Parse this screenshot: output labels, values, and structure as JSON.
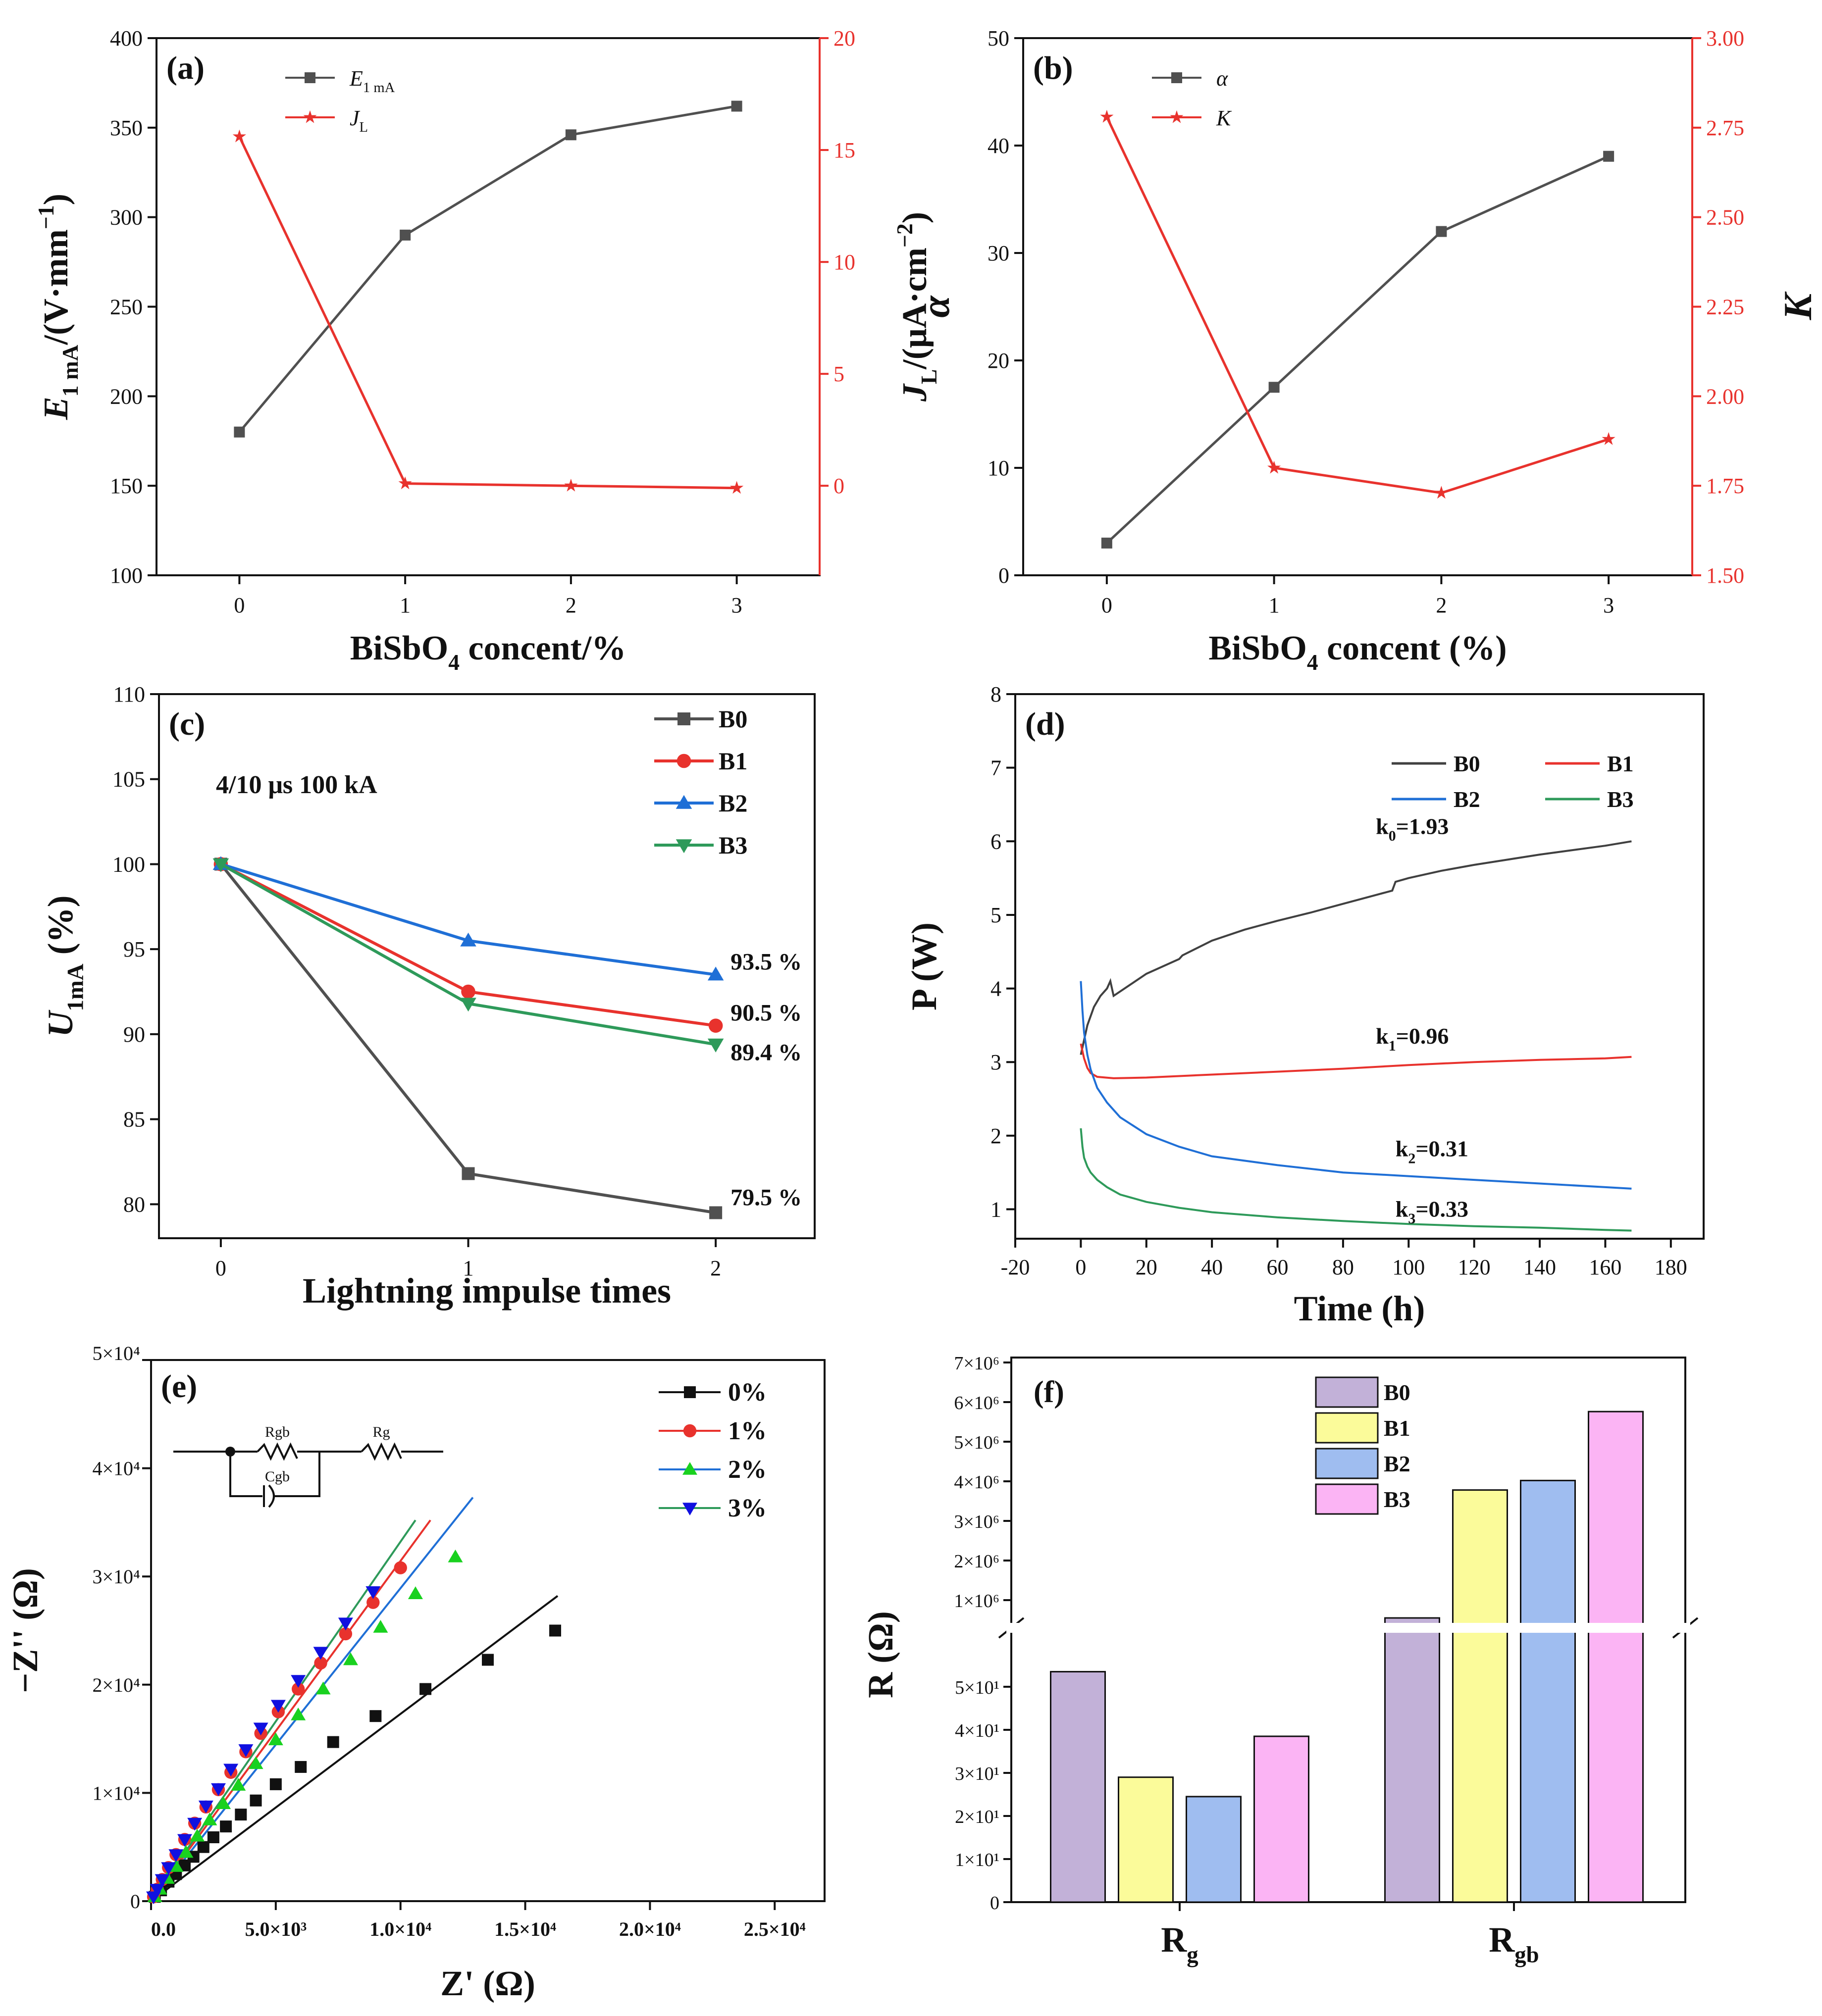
{
  "chart_data": [
    {
      "panel": "a",
      "tag": "(a)",
      "type": "line",
      "x": [
        0,
        1,
        2,
        3
      ],
      "xticks": [
        "0",
        "1",
        "2",
        "3"
      ],
      "xlim": [
        -0.5,
        3.5
      ],
      "xlabel": {
        "pre": "BiSbO",
        "sub": "4",
        "post": " concent/%"
      },
      "ylabel": {
        "pre": "E",
        "sub": "1 mA",
        "post": "/(V·mm",
        "sup": "−1",
        "end": ")"
      },
      "ylim": [
        100,
        400
      ],
      "yticks": [
        "100",
        "150",
        "200",
        "250",
        "300",
        "350",
        "400"
      ],
      "y2label": {
        "pre": "J",
        "sub": "L",
        "post": "/(μA·cm",
        "sup": "−2",
        "end": ")"
      },
      "y2lim": [
        -4,
        20
      ],
      "y2ticks": [
        "0",
        "5",
        "10",
        "15",
        "20"
      ],
      "series": [
        {
          "name": "E",
          "sub": "1 mA",
          "axis": "left",
          "color": "#505050",
          "marker": "square",
          "values": [
            180,
            290,
            346,
            362
          ]
        },
        {
          "name": "J",
          "sub": "L",
          "axis": "right",
          "color": "#e8322d",
          "marker": "star",
          "values": [
            15.6,
            0.1,
            0.0,
            -0.1
          ]
        }
      ]
    },
    {
      "panel": "b",
      "tag": "(b)",
      "type": "line",
      "x": [
        0,
        1,
        2,
        3
      ],
      "xticks": [
        "0",
        "1",
        "2",
        "3"
      ],
      "xlim": [
        -0.5,
        3.5
      ],
      "xlabel": {
        "pre": "BiSbO",
        "sub": "4",
        "post": " concent (%)"
      },
      "ylabel": {
        "pre": "α"
      },
      "ylim": [
        0,
        50
      ],
      "yticks": [
        "0",
        "10",
        "20",
        "30",
        "40",
        "50"
      ],
      "y2label": {
        "pre": "K"
      },
      "y2lim": [
        1.5,
        3.0
      ],
      "y2ticks": [
        "1.50",
        "1.75",
        "2.00",
        "2.25",
        "2.50",
        "2.75",
        "3.00"
      ],
      "series": [
        {
          "name": "α",
          "axis": "left",
          "color": "#505050",
          "marker": "square",
          "values": [
            3,
            17.5,
            32,
            39
          ]
        },
        {
          "name": "K",
          "axis": "right",
          "color": "#e8322d",
          "marker": "star",
          "values": [
            2.78,
            1.8,
            1.73,
            1.88
          ]
        }
      ]
    },
    {
      "panel": "c",
      "tag": "(c)",
      "type": "line",
      "x": [
        0,
        1,
        2
      ],
      "xticks": [
        "0",
        "1",
        "2"
      ],
      "xlim": [
        -0.25,
        2.4
      ],
      "xlabel": {
        "pre": "Lightning impulse times"
      },
      "ylabel": {
        "pre": "U",
        "sub": "1mA",
        "post": " (%)"
      },
      "ylim": [
        78,
        110
      ],
      "yticks": [
        "80",
        "85",
        "90",
        "95",
        "100",
        "105",
        "110"
      ],
      "annotation": "4/10 μs  100 kA",
      "end_labels": [
        "93.5 %",
        "90.5 %",
        "89.4 %",
        "79.5 %"
      ],
      "series": [
        {
          "name": "B0",
          "color": "#505050",
          "marker": "square",
          "values": [
            100,
            81.8,
            79.5
          ]
        },
        {
          "name": "B1",
          "color": "#e8322d",
          "marker": "circle",
          "values": [
            100,
            92.5,
            90.5
          ]
        },
        {
          "name": "B2",
          "color": "#1f6fd6",
          "marker": "triangle",
          "values": [
            100,
            95.5,
            93.5
          ]
        },
        {
          "name": "B3",
          "color": "#2e9a5a",
          "marker": "triangle-down",
          "values": [
            100,
            91.8,
            89.4
          ]
        }
      ]
    },
    {
      "panel": "d",
      "tag": "(d)",
      "type": "line",
      "xlim": [
        -20,
        190
      ],
      "xticks": [
        "-20",
        "0",
        "20",
        "40",
        "60",
        "80",
        "100",
        "120",
        "140",
        "160",
        "180"
      ],
      "xlabel": {
        "pre": "Time (h)"
      },
      "ylabel": {
        "pre": "P (W)"
      },
      "ylim": [
        0.6,
        8
      ],
      "yticks": [
        "1",
        "2",
        "3",
        "4",
        "5",
        "6",
        "7",
        "8"
      ],
      "rate_labels": [
        {
          "pre": "k",
          "sub": "0",
          "post": "=1.93"
        },
        {
          "pre": "k",
          "sub": "1",
          "post": "=0.96"
        },
        {
          "pre": "k",
          "sub": "2",
          "post": "=0.31"
        },
        {
          "pre": "k",
          "sub": "3",
          "post": "=0.33"
        }
      ],
      "series": [
        {
          "name": "B0",
          "color": "#404040",
          "x": [
            0,
            2,
            4,
            6,
            8,
            9,
            10,
            15,
            20,
            30,
            31,
            40,
            50,
            60,
            70,
            80,
            90,
            95,
            96,
            100,
            110,
            120,
            130,
            140,
            150,
            160,
            168
          ],
          "values": [
            3.1,
            3.5,
            3.75,
            3.9,
            4.0,
            4.1,
            3.9,
            4.05,
            4.2,
            4.4,
            4.45,
            4.65,
            4.8,
            4.92,
            5.03,
            5.15,
            5.27,
            5.33,
            5.45,
            5.5,
            5.6,
            5.68,
            5.75,
            5.82,
            5.88,
            5.94,
            6.0
          ]
        },
        {
          "name": "B1",
          "color": "#e8322d",
          "x": [
            0,
            1,
            2,
            3,
            5,
            10,
            20,
            40,
            60,
            80,
            100,
            120,
            140,
            160,
            168
          ],
          "values": [
            3.25,
            3.05,
            2.92,
            2.85,
            2.8,
            2.78,
            2.79,
            2.83,
            2.87,
            2.91,
            2.96,
            3.0,
            3.03,
            3.05,
            3.07
          ]
        },
        {
          "name": "B2",
          "color": "#1f6fd6",
          "x": [
            0,
            0.5,
            1,
            2,
            3,
            5,
            8,
            12,
            20,
            30,
            40,
            60,
            80,
            100,
            120,
            140,
            160,
            168
          ],
          "values": [
            4.1,
            3.7,
            3.4,
            3.1,
            2.9,
            2.65,
            2.45,
            2.25,
            2.02,
            1.85,
            1.72,
            1.6,
            1.5,
            1.45,
            1.4,
            1.35,
            1.3,
            1.28
          ]
        },
        {
          "name": "B3",
          "color": "#2e9a5a",
          "x": [
            0,
            0.5,
            1,
            2,
            3,
            5,
            8,
            12,
            20,
            30,
            40,
            60,
            80,
            100,
            120,
            140,
            160,
            168
          ],
          "values": [
            2.1,
            1.85,
            1.7,
            1.58,
            1.5,
            1.4,
            1.3,
            1.2,
            1.1,
            1.02,
            0.96,
            0.89,
            0.84,
            0.8,
            0.77,
            0.75,
            0.72,
            0.71
          ]
        }
      ]
    },
    {
      "panel": "e",
      "tag": "(e)",
      "type": "scatter",
      "xlim": [
        0,
        27000
      ],
      "xticks": [
        "0.0",
        "5.0×10³",
        "1.0×10⁴",
        "1.5×10⁴",
        "2.0×10⁴",
        "2.5×10⁴"
      ],
      "xlabel": {
        "pre": "Z' (Ω)"
      },
      "ylim": [
        0,
        50000
      ],
      "yticks": [
        "0",
        "1×10⁴",
        "2×10⁴",
        "3×10⁴",
        "4×10⁴",
        "5×10⁴"
      ],
      "ylabel": {
        "pre": "−Z'' (Ω)"
      },
      "circuit": {
        "r1": "Rgb",
        "r2": "Rg",
        "c": "Cgb"
      },
      "series": [
        {
          "name": "0%",
          "color": "#111111",
          "marker": "square",
          "x": [
            150,
            400,
            700,
            1000,
            1350,
            1700,
            2100,
            2500,
            3000,
            3600,
            4200,
            5000,
            6000,
            7300,
            9000,
            11000,
            13500,
            16200
          ],
          "values": [
            400,
            1000,
            1800,
            2500,
            3300,
            4100,
            5000,
            5900,
            6900,
            8000,
            9300,
            10800,
            12400,
            14700,
            17100,
            19600,
            22300,
            25000
          ]
        },
        {
          "name": "1%",
          "color": "#e8322d",
          "marker": "circle",
          "x": [
            100,
            250,
            450,
            700,
            1000,
            1350,
            1750,
            2200,
            2700,
            3200,
            3800,
            4400,
            5100,
            5900,
            6800,
            7800,
            8900,
            10000
          ],
          "values": [
            400,
            1100,
            2000,
            3100,
            4300,
            5700,
            7200,
            8700,
            10300,
            11900,
            13800,
            15500,
            17500,
            19600,
            22000,
            24700,
            27600,
            30800
          ]
        },
        {
          "name": "2%",
          "color": "#19d11f",
          "marker": "triangle",
          "x": [
            150,
            350,
            650,
            1000,
            1400,
            1850,
            2350,
            2900,
            3500,
            4200,
            5000,
            5900,
            6900,
            8000,
            9200,
            10600,
            12200
          ],
          "values": [
            400,
            1100,
            2100,
            3200,
            4500,
            6000,
            7500,
            9000,
            10700,
            12700,
            14900,
            17200,
            19600,
            22300,
            25300,
            28400,
            31800
          ]
        },
        {
          "name": "3%",
          "color": "#1010e0",
          "marker": "triangle-down",
          "x": [
            100,
            250,
            450,
            700,
            1000,
            1350,
            1750,
            2200,
            2700,
            3200,
            3800,
            4400,
            5100,
            5900,
            6800,
            7800,
            8900
          ],
          "values": [
            400,
            1100,
            2000,
            3100,
            4300,
            5700,
            7200,
            8800,
            10400,
            12200,
            14000,
            16000,
            18100,
            20400,
            23000,
            25700,
            28600
          ]
        }
      ],
      "fits": [
        {
          "color": "#111111",
          "x": [
            0,
            16300
          ],
          "values": [
            0,
            28200
          ]
        },
        {
          "color": "#e8322d",
          "x": [
            0,
            11200
          ],
          "values": [
            0,
            35200
          ]
        },
        {
          "color": "#1f6fd6",
          "x": [
            0,
            12900
          ],
          "values": [
            0,
            37300
          ]
        },
        {
          "color": "#2e9a5a",
          "x": [
            0,
            10600
          ],
          "values": [
            0,
            35200
          ]
        }
      ]
    },
    {
      "panel": "f",
      "type": "bar",
      "tag": "(f)",
      "categories": [
        {
          "pre": "R",
          "sub": "g"
        },
        {
          "pre": "R",
          "sub": "gb"
        }
      ],
      "ylabel": {
        "pre": "R (Ω)"
      },
      "lower_ylim": [
        0,
        60
      ],
      "lower_yticks": [
        "0",
        "1×10¹",
        "2×10¹",
        "3×10¹",
        "4×10¹",
        "5×10¹"
      ],
      "upper_ylim": [
        0,
        7000000
      ],
      "upper_yticks": [
        "1×10⁶",
        "2×10⁶",
        "3×10⁶",
        "4×10⁶",
        "5×10⁶",
        "6×10⁶",
        "7×10⁶"
      ],
      "series": [
        {
          "name": "B0",
          "color": "#c2b1d8",
          "values": [
            53.5,
            550000
          ]
        },
        {
          "name": "B1",
          "color": "#fbfb9a",
          "values": [
            29,
            3780000
          ]
        },
        {
          "name": "B2",
          "color": "#9fbdf0",
          "values": [
            24.5,
            4020000
          ]
        },
        {
          "name": "B3",
          "color": "#fbb4f4",
          "values": [
            38.5,
            5760000
          ]
        }
      ]
    }
  ]
}
